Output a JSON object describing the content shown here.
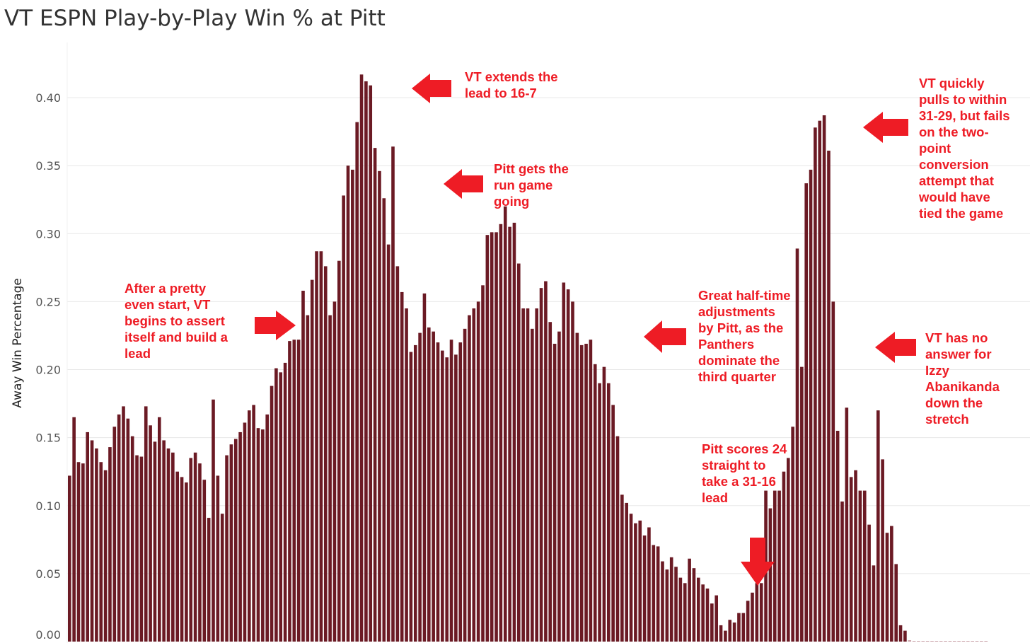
{
  "title": "VT ESPN Play-by-Play Win % at Pitt",
  "colors": {
    "bar": "#6b1a24",
    "annotation": "#ee1c25",
    "grid": "#e8e8e8"
  },
  "chart_data": {
    "type": "bar",
    "title": "VT ESPN Play-by-Play Win % at Pitt",
    "ylabel": "Away Win Percentage",
    "xlabel": "",
    "ylim": [
      0,
      0.43
    ],
    "yticks": [
      "0.00",
      "0.05",
      "0.10",
      "0.15",
      "0.20",
      "0.25",
      "0.30",
      "0.35",
      "0.40"
    ],
    "grid": "horizontal",
    "values": [
      0.122,
      0.165,
      0.132,
      0.131,
      0.154,
      0.148,
      0.142,
      0.132,
      0.126,
      0.143,
      0.158,
      0.167,
      0.173,
      0.164,
      0.151,
      0.137,
      0.136,
      0.173,
      0.159,
      0.147,
      0.165,
      0.148,
      0.142,
      0.139,
      0.125,
      0.121,
      0.117,
      0.135,
      0.139,
      0.131,
      0.119,
      0.091,
      0.178,
      0.122,
      0.094,
      0.137,
      0.145,
      0.149,
      0.154,
      0.161,
      0.17,
      0.174,
      0.157,
      0.156,
      0.167,
      0.188,
      0.201,
      0.198,
      0.205,
      0.221,
      0.222,
      0.222,
      0.258,
      0.24,
      0.266,
      0.287,
      0.287,
      0.276,
      0.24,
      0.25,
      0.28,
      0.328,
      0.35,
      0.347,
      0.382,
      0.417,
      0.412,
      0.409,
      0.363,
      0.346,
      0.326,
      0.292,
      0.364,
      0.276,
      0.257,
      0.245,
      0.213,
      0.218,
      0.227,
      0.256,
      0.231,
      0.228,
      0.22,
      0.214,
      0.209,
      0.222,
      0.211,
      0.22,
      0.23,
      0.24,
      0.245,
      0.25,
      0.262,
      0.299,
      0.301,
      0.301,
      0.307,
      0.32,
      0.305,
      0.308,
      0.278,
      0.245,
      0.245,
      0.23,
      0.245,
      0.26,
      0.265,
      0.235,
      0.219,
      0.228,
      0.264,
      0.259,
      0.25,
      0.227,
      0.218,
      0.219,
      0.222,
      0.204,
      0.19,
      0.202,
      0.19,
      0.174,
      0.151,
      0.108,
      0.102,
      0.094,
      0.087,
      0.089,
      0.078,
      0.084,
      0.071,
      0.07,
      0.059,
      0.053,
      0.062,
      0.055,
      0.047,
      0.043,
      0.061,
      0.054,
      0.047,
      0.042,
      0.039,
      0.028,
      0.034,
      0.012,
      0.008,
      0.016,
      0.014,
      0.021,
      0.021,
      0.03,
      0.036,
      0.043,
      0.043,
      0.111,
      0.098,
      0.111,
      0.111,
      0.125,
      0.135,
      0.158,
      0.289,
      0.202,
      0.337,
      0.347,
      0.378,
      0.383,
      0.387,
      0.361,
      0.25,
      0.155,
      0.103,
      0.172,
      0.121,
      0.126,
      0.111,
      0.111,
      0.086,
      0.056,
      0.17,
      0.134,
      0.08,
      0.085,
      0.057,
      0.012,
      0.008,
      0.001,
      0.0,
      0.0,
      0.0,
      0.0,
      0.0,
      0.0,
      0.0,
      0.0,
      0.0,
      0.0,
      0.0,
      0.0,
      0.0,
      0.0,
      0.0,
      0.0,
      0.0
    ]
  },
  "annotations": {
    "assert_lead": "After a pretty\neven start, VT\nbegins to assert\nitself and build a\nlead",
    "extends_lead": "VT extends the\nlead to 16-7",
    "run_game": "Pitt gets the\nrun game\ngoing",
    "halftime": "Great half-time\nadjustments\nby Pitt, as the\nPanthers\ndominate the\nthird quarter",
    "pitt_run": "Pitt scores 24\nstraight to\ntake a 31-16\nlead",
    "comeback": "VT quickly\npulls to within\n31-29, but fails\non the two-\npoint\nconversion\nattempt that\nwould have\ntied the game",
    "no_answer": "VT has no\nanswer for\nIzzy\nAbanikanda\ndown the\nstretch"
  }
}
